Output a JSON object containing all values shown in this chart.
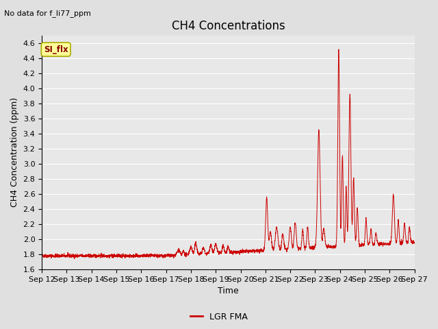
{
  "title": "CH4 Concentrations",
  "xlabel": "Time",
  "ylabel": "CH4 Concentration (ppm)",
  "top_left_text": "No data for f_li77_ppm",
  "legend_label": "LGR FMA",
  "legend_box_label": "SI_flx",
  "ylim": [
    1.6,
    4.7
  ],
  "yticks": [
    1.6,
    1.8,
    2.0,
    2.2,
    2.4,
    2.6,
    2.8,
    3.0,
    3.2,
    3.4,
    3.6,
    3.8,
    4.0,
    4.2,
    4.4,
    4.6
  ],
  "x_tick_labels": [
    "Sep 12",
    "Sep 13",
    "Sep 14",
    "Sep 15",
    "Sep 16",
    "Sep 17",
    "Sep 18",
    "Sep 19",
    "Sep 20",
    "Sep 21",
    "Sep 22",
    "Sep 23",
    "Sep 24",
    "Sep 25",
    "Sep 26",
    "Sep 27"
  ],
  "line_color": "#cc0000",
  "background_color": "#e0e0e0",
  "plot_bg_color": "#e8e8e8",
  "legend_box_bg": "#ffff99",
  "legend_box_edge": "#aaaa00",
  "grid_color": "#ffffff",
  "title_fontsize": 12,
  "label_fontsize": 9,
  "tick_fontsize": 8
}
